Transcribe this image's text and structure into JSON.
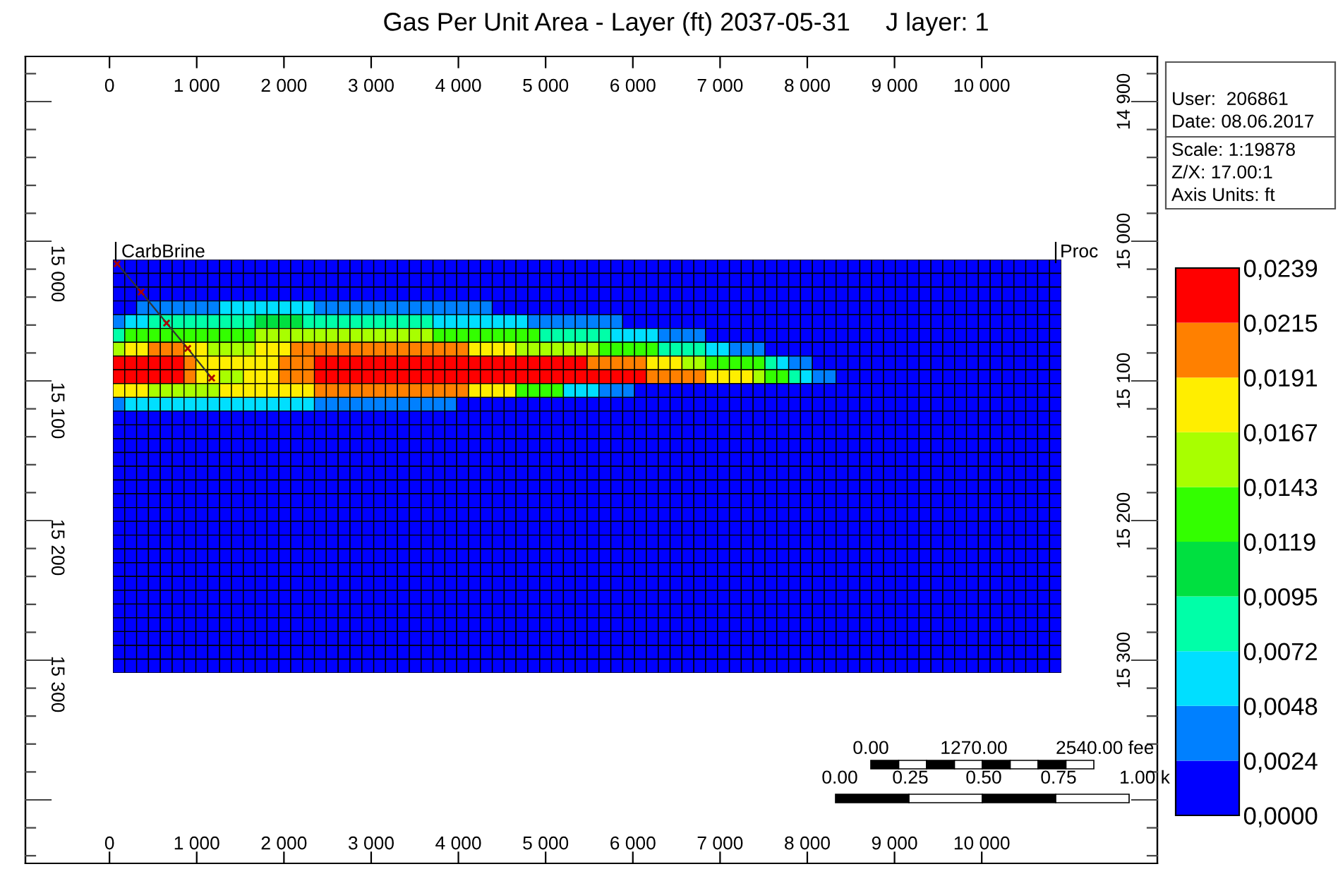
{
  "chart_data": {
    "type": "heatmap",
    "title": "Gas Per Unit Area - Layer (ft) 2037-05-31     J layer: 1",
    "categories": [
      null,
      null,
      null,
      null,
      null,
      null,
      null,
      null,
      null,
      null,
      null,
      null,
      null,
      null,
      null,
      null,
      null,
      null,
      null,
      null,
      null,
      null,
      null,
      null,
      null,
      null,
      null,
      null,
      null,
      null,
      null,
      null,
      null,
      null,
      null,
      null,
      null,
      null,
      null,
      null,
      null,
      null,
      null,
      null,
      null,
      null,
      null,
      null,
      null,
      null,
      null,
      null,
      null,
      null,
      null,
      null,
      null,
      null,
      null,
      null,
      null,
      null,
      null,
      null,
      null,
      null,
      null,
      null,
      null,
      null,
      null,
      null,
      null,
      null,
      null,
      null,
      null,
      null,
      null,
      null
    ],
    "y_categories": [
      null,
      null,
      null,
      null,
      null,
      null,
      null,
      null,
      null,
      null,
      null,
      null,
      null,
      null,
      null,
      null,
      null,
      null,
      null,
      null,
      null,
      null,
      null,
      null,
      null,
      null,
      null,
      null,
      null,
      null
    ],
    "cells": [
      [
        0,
        0,
        0,
        0,
        0,
        0,
        0,
        0,
        0,
        0,
        0,
        0,
        0,
        0,
        0,
        0,
        0,
        0,
        0,
        0,
        0,
        0,
        0,
        0,
        0,
        0,
        0,
        0,
        0,
        0,
        0,
        0,
        0,
        0,
        0,
        0,
        0,
        0,
        0,
        0,
        0,
        0,
        0,
        0,
        0,
        0,
        0,
        0,
        0,
        0,
        0,
        0,
        0,
        0,
        0,
        0,
        0,
        0,
        0,
        0,
        0,
        0,
        0,
        0,
        0,
        0,
        0,
        0,
        0,
        0,
        0,
        0,
        0,
        0,
        0,
        0,
        0,
        0,
        0,
        0
      ],
      [
        0,
        0,
        0,
        0,
        0,
        0,
        0,
        0,
        0,
        0,
        0,
        0,
        0,
        0,
        0,
        0,
        0,
        0,
        0,
        0,
        0,
        0,
        0,
        0,
        0,
        0,
        0,
        0,
        0,
        0,
        0,
        0,
        0,
        0,
        0,
        0,
        0,
        0,
        0,
        0,
        0,
        0,
        0,
        0,
        0,
        0,
        0,
        0,
        0,
        0,
        0,
        0,
        0,
        0,
        0,
        0,
        0,
        0,
        0,
        0,
        0,
        0,
        0,
        0,
        0,
        0,
        0,
        0,
        0,
        0,
        0,
        0,
        0,
        0,
        0,
        0,
        0,
        0,
        0,
        0
      ],
      [
        0,
        0,
        0,
        0,
        0,
        0,
        0,
        0,
        0,
        0,
        0,
        0,
        0,
        0,
        0,
        0,
        0,
        0,
        0,
        0,
        0,
        0,
        0,
        0,
        0,
        0,
        0,
        0,
        0,
        0,
        0,
        0,
        0,
        0,
        0,
        0,
        0,
        0,
        0,
        0,
        0,
        0,
        0,
        0,
        0,
        0,
        0,
        0,
        0,
        0,
        0,
        0,
        0,
        0,
        0,
        0,
        0,
        0,
        0,
        0,
        0,
        0,
        0,
        0,
        0,
        0,
        0,
        0,
        0,
        0,
        0,
        0,
        0,
        0,
        0,
        0,
        0,
        0,
        0,
        0
      ],
      [
        0,
        0,
        0.0036,
        0.0036,
        0.0036,
        0.0036,
        0.0036,
        0.0036,
        0.0036,
        0.006,
        0.006,
        0.006,
        0.006,
        0.006,
        0.006,
        0.006,
        0.006,
        0.0036,
        0.0036,
        0.0036,
        0.0036,
        0.0036,
        0.0036,
        0.0036,
        0.0036,
        0.0036,
        0.0036,
        0.0036,
        0.0036,
        0.0036,
        0.0036,
        0.0036,
        0,
        0,
        0,
        0,
        0,
        0,
        0,
        0,
        0,
        0,
        0,
        0,
        0,
        0,
        0,
        0,
        0,
        0,
        0,
        0,
        0,
        0,
        0,
        0,
        0,
        0,
        0,
        0,
        0,
        0,
        0,
        0,
        0,
        0,
        0,
        0,
        0,
        0,
        0,
        0,
        0,
        0,
        0,
        0,
        0,
        0,
        0,
        0
      ],
      [
        0.0036,
        0.006,
        0.006,
        0.0084,
        0.0084,
        0.0084,
        0.0084,
        0.0084,
        0.0084,
        0.0084,
        0.0084,
        0.0084,
        0.0107,
        0.0107,
        0.0107,
        0.0107,
        0.0084,
        0.0084,
        0.0084,
        0.0084,
        0.0084,
        0.0084,
        0.0084,
        0.0084,
        0.0084,
        0.0084,
        0.0084,
        0.006,
        0.006,
        0.006,
        0.006,
        0.006,
        0.006,
        0.006,
        0.006,
        0.0036,
        0.0036,
        0.0036,
        0.0036,
        0.0036,
        0.0036,
        0.0036,
        0.0036,
        0,
        0,
        0,
        0,
        0,
        0,
        0,
        0,
        0,
        0,
        0,
        0,
        0,
        0,
        0,
        0,
        0,
        0,
        0,
        0,
        0,
        0,
        0,
        0,
        0,
        0,
        0,
        0,
        0,
        0,
        0,
        0,
        0,
        0,
        0,
        0,
        0
      ],
      [
        0.0084,
        0.0131,
        0.0131,
        0.0131,
        0.0131,
        0.0131,
        0.0131,
        0.0131,
        0.0131,
        0.0131,
        0.0131,
        0.0131,
        0.0155,
        0.0155,
        0.0155,
        0.0155,
        0.0155,
        0.0155,
        0.0155,
        0.0155,
        0.0155,
        0.0155,
        0.0155,
        0.0155,
        0.0155,
        0.0155,
        0.0155,
        0.0131,
        0.0131,
        0.0131,
        0.0131,
        0.0131,
        0.0131,
        0.0131,
        0.0131,
        0.0131,
        0.0084,
        0.0084,
        0.0084,
        0.0084,
        0.0084,
        0.0084,
        0.006,
        0.006,
        0.006,
        0.006,
        0.0036,
        0.0036,
        0.0036,
        0.0036,
        0,
        0,
        0,
        0,
        0,
        0,
        0,
        0,
        0,
        0,
        0,
        0,
        0,
        0,
        0,
        0,
        0,
        0,
        0,
        0,
        0,
        0,
        0,
        0,
        0,
        0,
        0,
        0,
        0,
        0
      ],
      [
        0.0155,
        0.0179,
        0.0179,
        0.0203,
        0.0203,
        0.0203,
        0.0179,
        0.0179,
        0.0155,
        0.0155,
        0.0155,
        0.0155,
        0.0179,
        0.0179,
        0.0179,
        0.0203,
        0.0203,
        0.0203,
        0.0203,
        0.0203,
        0.0203,
        0.0203,
        0.0203,
        0.0203,
        0.0203,
        0.0203,
        0.0203,
        0.0203,
        0.0203,
        0.0203,
        0.0179,
        0.0179,
        0.0179,
        0.0179,
        0.0155,
        0.0155,
        0.0155,
        0.0155,
        0.0155,
        0.0155,
        0.0155,
        0.0131,
        0.0131,
        0.0131,
        0.0131,
        0.0131,
        0.0084,
        0.0084,
        0.0084,
        0.0084,
        0.006,
        0.006,
        0.0036,
        0.0036,
        0.0036,
        0,
        0,
        0,
        0,
        0,
        0,
        0,
        0,
        0,
        0,
        0,
        0,
        0,
        0,
        0,
        0,
        0,
        0,
        0,
        0,
        0,
        0,
        0,
        0,
        0
      ],
      [
        0.0227,
        0.0227,
        0.0227,
        0.0227,
        0.0227,
        0.0227,
        0.0203,
        0.0179,
        0.0179,
        0.0179,
        0.0179,
        0.0179,
        0.0179,
        0.0179,
        0.0203,
        0.0203,
        0.0203,
        0.0227,
        0.0227,
        0.0227,
        0.0227,
        0.0227,
        0.0227,
        0.0227,
        0.0227,
        0.0227,
        0.0227,
        0.0227,
        0.0227,
        0.0227,
        0.0227,
        0.0227,
        0.0227,
        0.0227,
        0.0227,
        0.0227,
        0.0227,
        0.0227,
        0.0227,
        0.0227,
        0.0203,
        0.0203,
        0.0203,
        0.0203,
        0.0203,
        0.0179,
        0.0179,
        0.0179,
        0.0155,
        0.0155,
        0.0131,
        0.0131,
        0.0131,
        0.0131,
        0.0131,
        0.0084,
        0.006,
        0.0036,
        0.0036,
        0,
        0,
        0,
        0,
        0,
        0,
        0,
        0,
        0,
        0,
        0,
        0,
        0,
        0,
        0,
        0,
        0,
        0,
        0,
        0,
        0
      ],
      [
        0.0227,
        0.0227,
        0.0227,
        0.0227,
        0.0227,
        0.0227,
        0.0203,
        0.0179,
        0.0179,
        0.0155,
        0.0155,
        0.0179,
        0.0179,
        0.0179,
        0.0203,
        0.0203,
        0.0203,
        0.0227,
        0.0227,
        0.0227,
        0.0227,
        0.0227,
        0.0227,
        0.0227,
        0.0227,
        0.0227,
        0.0227,
        0.0227,
        0.0227,
        0.0227,
        0.0227,
        0.0227,
        0.0227,
        0.0227,
        0.0227,
        0.0227,
        0.0227,
        0.0227,
        0.0227,
        0.0227,
        0.0227,
        0.0227,
        0.0227,
        0.0227,
        0.0227,
        0.0203,
        0.0203,
        0.0203,
        0.0203,
        0.0203,
        0.0179,
        0.0179,
        0.0179,
        0.0179,
        0.0155,
        0.0131,
        0.0131,
        0.0084,
        0.006,
        0.0036,
        0.0036,
        0,
        0,
        0,
        0,
        0,
        0,
        0,
        0,
        0,
        0,
        0,
        0,
        0,
        0,
        0,
        0,
        0,
        0,
        0
      ],
      [
        0.0179,
        0.0179,
        0.0179,
        0.0155,
        0.0155,
        0.0155,
        0.0155,
        0.0155,
        0.0155,
        0.0179,
        0.0179,
        0.0179,
        0.0179,
        0.0179,
        0.0179,
        0.0179,
        0.0179,
        0.0203,
        0.0203,
        0.0203,
        0.0203,
        0.0203,
        0.0203,
        0.0203,
        0.0203,
        0.0203,
        0.0203,
        0.0203,
        0.0203,
        0.0203,
        0.0179,
        0.0179,
        0.0179,
        0.0179,
        0.0131,
        0.0131,
        0.0131,
        0.0131,
        0.006,
        0.006,
        0.006,
        0.0036,
        0.0036,
        0.0036,
        0,
        0,
        0,
        0,
        0,
        0,
        0,
        0,
        0,
        0,
        0,
        0,
        0,
        0,
        0,
        0,
        0,
        0,
        0,
        0,
        0,
        0,
        0,
        0,
        0,
        0,
        0,
        0,
        0,
        0,
        0,
        0,
        0,
        0,
        0,
        0
      ],
      [
        0.0036,
        0.006,
        0.006,
        0.006,
        0.006,
        0.006,
        0.006,
        0.006,
        0.006,
        0.006,
        0.006,
        0.006,
        0.006,
        0.006,
        0.006,
        0.006,
        0.006,
        0.0036,
        0.0036,
        0.0036,
        0.0036,
        0.0036,
        0.0036,
        0.0036,
        0.0036,
        0.0036,
        0.0036,
        0.0036,
        0.0036,
        0,
        0,
        0,
        0,
        0,
        0,
        0,
        0,
        0,
        0,
        0,
        0,
        0,
        0,
        0,
        0,
        0,
        0,
        0,
        0,
        0,
        0,
        0,
        0,
        0,
        0,
        0,
        0,
        0,
        0,
        0,
        0,
        0,
        0,
        0,
        0,
        0,
        0,
        0,
        0,
        0,
        0,
        0,
        0,
        0,
        0,
        0,
        0,
        0,
        0,
        0
      ],
      [
        0,
        0,
        0,
        0,
        0,
        0,
        0,
        0,
        0,
        0,
        0,
        0,
        0,
        0,
        0,
        0,
        0,
        0,
        0,
        0,
        0,
        0,
        0,
        0,
        0,
        0,
        0,
        0,
        0,
        0,
        0,
        0,
        0,
        0,
        0,
        0,
        0,
        0,
        0,
        0,
        0,
        0,
        0,
        0,
        0,
        0,
        0,
        0,
        0,
        0,
        0,
        0,
        0,
        0,
        0,
        0,
        0,
        0,
        0,
        0,
        0,
        0,
        0,
        0,
        0,
        0,
        0,
        0,
        0,
        0,
        0,
        0,
        0,
        0,
        0,
        0,
        0,
        0,
        0,
        0
      ],
      [
        0,
        0,
        0,
        0,
        0,
        0,
        0,
        0,
        0,
        0,
        0,
        0,
        0,
        0,
        0,
        0,
        0,
        0,
        0,
        0,
        0,
        0,
        0,
        0,
        0,
        0,
        0,
        0,
        0,
        0,
        0,
        0,
        0,
        0,
        0,
        0,
        0,
        0,
        0,
        0,
        0,
        0,
        0,
        0,
        0,
        0,
        0,
        0,
        0,
        0,
        0,
        0,
        0,
        0,
        0,
        0,
        0,
        0,
        0,
        0,
        0,
        0,
        0,
        0,
        0,
        0,
        0,
        0,
        0,
        0,
        0,
        0,
        0,
        0,
        0,
        0,
        0,
        0,
        0,
        0
      ],
      [
        0,
        0,
        0,
        0,
        0,
        0,
        0,
        0,
        0,
        0,
        0,
        0,
        0,
        0,
        0,
        0,
        0,
        0,
        0,
        0,
        0,
        0,
        0,
        0,
        0,
        0,
        0,
        0,
        0,
        0,
        0,
        0,
        0,
        0,
        0,
        0,
        0,
        0,
        0,
        0,
        0,
        0,
        0,
        0,
        0,
        0,
        0,
        0,
        0,
        0,
        0,
        0,
        0,
        0,
        0,
        0,
        0,
        0,
        0,
        0,
        0,
        0,
        0,
        0,
        0,
        0,
        0,
        0,
        0,
        0,
        0,
        0,
        0,
        0,
        0,
        0,
        0,
        0,
        0,
        0
      ],
      [
        0,
        0,
        0,
        0,
        0,
        0,
        0,
        0,
        0,
        0,
        0,
        0,
        0,
        0,
        0,
        0,
        0,
        0,
        0,
        0,
        0,
        0,
        0,
        0,
        0,
        0,
        0,
        0,
        0,
        0,
        0,
        0,
        0,
        0,
        0,
        0,
        0,
        0,
        0,
        0,
        0,
        0,
        0,
        0,
        0,
        0,
        0,
        0,
        0,
        0,
        0,
        0,
        0,
        0,
        0,
        0,
        0,
        0,
        0,
        0,
        0,
        0,
        0,
        0,
        0,
        0,
        0,
        0,
        0,
        0,
        0,
        0,
        0,
        0,
        0,
        0,
        0,
        0,
        0,
        0
      ],
      [
        0,
        0,
        0,
        0,
        0,
        0,
        0,
        0,
        0,
        0,
        0,
        0,
        0,
        0,
        0,
        0,
        0,
        0,
        0,
        0,
        0,
        0,
        0,
        0,
        0,
        0,
        0,
        0,
        0,
        0,
        0,
        0,
        0,
        0,
        0,
        0,
        0,
        0,
        0,
        0,
        0,
        0,
        0,
        0,
        0,
        0,
        0,
        0,
        0,
        0,
        0,
        0,
        0,
        0,
        0,
        0,
        0,
        0,
        0,
        0,
        0,
        0,
        0,
        0,
        0,
        0,
        0,
        0,
        0,
        0,
        0,
        0,
        0,
        0,
        0,
        0,
        0,
        0,
        0,
        0
      ],
      [
        0,
        0,
        0,
        0,
        0,
        0,
        0,
        0,
        0,
        0,
        0,
        0,
        0,
        0,
        0,
        0,
        0,
        0,
        0,
        0,
        0,
        0,
        0,
        0,
        0,
        0,
        0,
        0,
        0,
        0,
        0,
        0,
        0,
        0,
        0,
        0,
        0,
        0,
        0,
        0,
        0,
        0,
        0,
        0,
        0,
        0,
        0,
        0,
        0,
        0,
        0,
        0,
        0,
        0,
        0,
        0,
        0,
        0,
        0,
        0,
        0,
        0,
        0,
        0,
        0,
        0,
        0,
        0,
        0,
        0,
        0,
        0,
        0,
        0,
        0,
        0,
        0,
        0,
        0,
        0
      ],
      [
        0,
        0,
        0,
        0,
        0,
        0,
        0,
        0,
        0,
        0,
        0,
        0,
        0,
        0,
        0,
        0,
        0,
        0,
        0,
        0,
        0,
        0,
        0,
        0,
        0,
        0,
        0,
        0,
        0,
        0,
        0,
        0,
        0,
        0,
        0,
        0,
        0,
        0,
        0,
        0,
        0,
        0,
        0,
        0,
        0,
        0,
        0,
        0,
        0,
        0,
        0,
        0,
        0,
        0,
        0,
        0,
        0,
        0,
        0,
        0,
        0,
        0,
        0,
        0,
        0,
        0,
        0,
        0,
        0,
        0,
        0,
        0,
        0,
        0,
        0,
        0,
        0,
        0,
        0,
        0
      ],
      [
        0,
        0,
        0,
        0,
        0,
        0,
        0,
        0,
        0,
        0,
        0,
        0,
        0,
        0,
        0,
        0,
        0,
        0,
        0,
        0,
        0,
        0,
        0,
        0,
        0,
        0,
        0,
        0,
        0,
        0,
        0,
        0,
        0,
        0,
        0,
        0,
        0,
        0,
        0,
        0,
        0,
        0,
        0,
        0,
        0,
        0,
        0,
        0,
        0,
        0,
        0,
        0,
        0,
        0,
        0,
        0,
        0,
        0,
        0,
        0,
        0,
        0,
        0,
        0,
        0,
        0,
        0,
        0,
        0,
        0,
        0,
        0,
        0,
        0,
        0,
        0,
        0,
        0,
        0,
        0
      ],
      [
        0,
        0,
        0,
        0,
        0,
        0,
        0,
        0,
        0,
        0,
        0,
        0,
        0,
        0,
        0,
        0,
        0,
        0,
        0,
        0,
        0,
        0,
        0,
        0,
        0,
        0,
        0,
        0,
        0,
        0,
        0,
        0,
        0,
        0,
        0,
        0,
        0,
        0,
        0,
        0,
        0,
        0,
        0,
        0,
        0,
        0,
        0,
        0,
        0,
        0,
        0,
        0,
        0,
        0,
        0,
        0,
        0,
        0,
        0,
        0,
        0,
        0,
        0,
        0,
        0,
        0,
        0,
        0,
        0,
        0,
        0,
        0,
        0,
        0,
        0,
        0,
        0,
        0,
        0,
        0
      ],
      [
        0,
        0,
        0,
        0,
        0,
        0,
        0,
        0,
        0,
        0,
        0,
        0,
        0,
        0,
        0,
        0,
        0,
        0,
        0,
        0,
        0,
        0,
        0,
        0,
        0,
        0,
        0,
        0,
        0,
        0,
        0,
        0,
        0,
        0,
        0,
        0,
        0,
        0,
        0,
        0,
        0,
        0,
        0,
        0,
        0,
        0,
        0,
        0,
        0,
        0,
        0,
        0,
        0,
        0,
        0,
        0,
        0,
        0,
        0,
        0,
        0,
        0,
        0,
        0,
        0,
        0,
        0,
        0,
        0,
        0,
        0,
        0,
        0,
        0,
        0,
        0,
        0,
        0,
        0,
        0
      ],
      [
        0,
        0,
        0,
        0,
        0,
        0,
        0,
        0,
        0,
        0,
        0,
        0,
        0,
        0,
        0,
        0,
        0,
        0,
        0,
        0,
        0,
        0,
        0,
        0,
        0,
        0,
        0,
        0,
        0,
        0,
        0,
        0,
        0,
        0,
        0,
        0,
        0,
        0,
        0,
        0,
        0,
        0,
        0,
        0,
        0,
        0,
        0,
        0,
        0,
        0,
        0,
        0,
        0,
        0,
        0,
        0,
        0,
        0,
        0,
        0,
        0,
        0,
        0,
        0,
        0,
        0,
        0,
        0,
        0,
        0,
        0,
        0,
        0,
        0,
        0,
        0,
        0,
        0,
        0,
        0
      ],
      [
        0,
        0,
        0,
        0,
        0,
        0,
        0,
        0,
        0,
        0,
        0,
        0,
        0,
        0,
        0,
        0,
        0,
        0,
        0,
        0,
        0,
        0,
        0,
        0,
        0,
        0,
        0,
        0,
        0,
        0,
        0,
        0,
        0,
        0,
        0,
        0,
        0,
        0,
        0,
        0,
        0,
        0,
        0,
        0,
        0,
        0,
        0,
        0,
        0,
        0,
        0,
        0,
        0,
        0,
        0,
        0,
        0,
        0,
        0,
        0,
        0,
        0,
        0,
        0,
        0,
        0,
        0,
        0,
        0,
        0,
        0,
        0,
        0,
        0,
        0,
        0,
        0,
        0,
        0,
        0
      ],
      [
        0,
        0,
        0,
        0,
        0,
        0,
        0,
        0,
        0,
        0,
        0,
        0,
        0,
        0,
        0,
        0,
        0,
        0,
        0,
        0,
        0,
        0,
        0,
        0,
        0,
        0,
        0,
        0,
        0,
        0,
        0,
        0,
        0,
        0,
        0,
        0,
        0,
        0,
        0,
        0,
        0,
        0,
        0,
        0,
        0,
        0,
        0,
        0,
        0,
        0,
        0,
        0,
        0,
        0,
        0,
        0,
        0,
        0,
        0,
        0,
        0,
        0,
        0,
        0,
        0,
        0,
        0,
        0,
        0,
        0,
        0,
        0,
        0,
        0,
        0,
        0,
        0,
        0,
        0,
        0
      ],
      [
        0,
        0,
        0,
        0,
        0,
        0,
        0,
        0,
        0,
        0,
        0,
        0,
        0,
        0,
        0,
        0,
        0,
        0,
        0,
        0,
        0,
        0,
        0,
        0,
        0,
        0,
        0,
        0,
        0,
        0,
        0,
        0,
        0,
        0,
        0,
        0,
        0,
        0,
        0,
        0,
        0,
        0,
        0,
        0,
        0,
        0,
        0,
        0,
        0,
        0,
        0,
        0,
        0,
        0,
        0,
        0,
        0,
        0,
        0,
        0,
        0,
        0,
        0,
        0,
        0,
        0,
        0,
        0,
        0,
        0,
        0,
        0,
        0,
        0,
        0,
        0,
        0,
        0,
        0,
        0
      ],
      [
        0,
        0,
        0,
        0,
        0,
        0,
        0,
        0,
        0,
        0,
        0,
        0,
        0,
        0,
        0,
        0,
        0,
        0,
        0,
        0,
        0,
        0,
        0,
        0,
        0,
        0,
        0,
        0,
        0,
        0,
        0,
        0,
        0,
        0,
        0,
        0,
        0,
        0,
        0,
        0,
        0,
        0,
        0,
        0,
        0,
        0,
        0,
        0,
        0,
        0,
        0,
        0,
        0,
        0,
        0,
        0,
        0,
        0,
        0,
        0,
        0,
        0,
        0,
        0,
        0,
        0,
        0,
        0,
        0,
        0,
        0,
        0,
        0,
        0,
        0,
        0,
        0,
        0,
        0,
        0
      ],
      [
        0,
        0,
        0,
        0,
        0,
        0,
        0,
        0,
        0,
        0,
        0,
        0,
        0,
        0,
        0,
        0,
        0,
        0,
        0,
        0,
        0,
        0,
        0,
        0,
        0,
        0,
        0,
        0,
        0,
        0,
        0,
        0,
        0,
        0,
        0,
        0,
        0,
        0,
        0,
        0,
        0,
        0,
        0,
        0,
        0,
        0,
        0,
        0,
        0,
        0,
        0,
        0,
        0,
        0,
        0,
        0,
        0,
        0,
        0,
        0,
        0,
        0,
        0,
        0,
        0,
        0,
        0,
        0,
        0,
        0,
        0,
        0,
        0,
        0,
        0,
        0,
        0,
        0,
        0,
        0
      ],
      [
        0,
        0,
        0,
        0,
        0,
        0,
        0,
        0,
        0,
        0,
        0,
        0,
        0,
        0,
        0,
        0,
        0,
        0,
        0,
        0,
        0,
        0,
        0,
        0,
        0,
        0,
        0,
        0,
        0,
        0,
        0,
        0,
        0,
        0,
        0,
        0,
        0,
        0,
        0,
        0,
        0,
        0,
        0,
        0,
        0,
        0,
        0,
        0,
        0,
        0,
        0,
        0,
        0,
        0,
        0,
        0,
        0,
        0,
        0,
        0,
        0,
        0,
        0,
        0,
        0,
        0,
        0,
        0,
        0,
        0,
        0,
        0,
        0,
        0,
        0,
        0,
        0,
        0,
        0,
        0
      ],
      [
        0,
        0,
        0,
        0,
        0,
        0,
        0,
        0,
        0,
        0,
        0,
        0,
        0,
        0,
        0,
        0,
        0,
        0,
        0,
        0,
        0,
        0,
        0,
        0,
        0,
        0,
        0,
        0,
        0,
        0,
        0,
        0,
        0,
        0,
        0,
        0,
        0,
        0,
        0,
        0,
        0,
        0,
        0,
        0,
        0,
        0,
        0,
        0,
        0,
        0,
        0,
        0,
        0,
        0,
        0,
        0,
        0,
        0,
        0,
        0,
        0,
        0,
        0,
        0,
        0,
        0,
        0,
        0,
        0,
        0,
        0,
        0,
        0,
        0,
        0,
        0,
        0,
        0,
        0,
        0
      ],
      [
        0,
        0,
        0,
        0,
        0,
        0,
        0,
        0,
        0,
        0,
        0,
        0,
        0,
        0,
        0,
        0,
        0,
        0,
        0,
        0,
        0,
        0,
        0,
        0,
        0,
        0,
        0,
        0,
        0,
        0,
        0,
        0,
        0,
        0,
        0,
        0,
        0,
        0,
        0,
        0,
        0,
        0,
        0,
        0,
        0,
        0,
        0,
        0,
        0,
        0,
        0,
        0,
        0,
        0,
        0,
        0,
        0,
        0,
        0,
        0,
        0,
        0,
        0,
        0,
        0,
        0,
        0,
        0,
        0,
        0,
        0,
        0,
        0,
        0,
        0,
        0,
        0,
        0,
        0,
        0
      ]
    ],
    "colors": [
      "#0000ff",
      "#0080ff",
      "#00dfff",
      "#00ffa8",
      "#00e040",
      "#33ff00",
      "#a8ff00",
      "#ffee00",
      "#ff8000",
      "#ff0000"
    ],
    "clim": [
      0,
      0.0239
    ],
    "cticks": [
      {
        "value": 0,
        "label": "0,0000"
      },
      {
        "value": 0.0024,
        "label": "0,0024"
      },
      {
        "value": 0.0048,
        "label": "0,0048"
      },
      {
        "value": 0.0072,
        "label": "0,0072"
      },
      {
        "value": 0.0095,
        "label": "0,0095"
      },
      {
        "value": 0.0119,
        "label": "0,0119"
      },
      {
        "value": 0.0143,
        "label": "0,0143"
      },
      {
        "value": 0.0167,
        "label": "0,0167"
      },
      {
        "value": 0.0191,
        "label": "0,0191"
      },
      {
        "value": 0.0215,
        "label": "0,0215"
      },
      {
        "value": 0.0239,
        "label": "0,0239"
      }
    ],
    "x2lim": [
      -964,
      12013
    ],
    "x2ticks": [
      {
        "value": 0,
        "label": "0"
      },
      {
        "value": 1000,
        "label": "1 000"
      },
      {
        "value": 2000,
        "label": "2 000"
      },
      {
        "value": 3000,
        "label": "3 000"
      },
      {
        "value": 4000,
        "label": "4 000"
      },
      {
        "value": 5000,
        "label": "5 000"
      },
      {
        "value": 6000,
        "label": "6 000"
      },
      {
        "value": 7000,
        "label": "7 000"
      },
      {
        "value": 8000,
        "label": "8 000"
      },
      {
        "value": 9000,
        "label": "9 000"
      },
      {
        "value": 10000,
        "label": "10 000"
      }
    ],
    "annotations": [
      "CarbBrine",
      "Proc",
      "User:  206861",
      "Date: 08.06.2017",
      "Scale: 1:19878",
      "Z/X: 17.00:1",
      "Axis Units: ft",
      "0.00",
      "1270.00",
      "2540.00 fee",
      "0.00",
      "0.25",
      "0.50",
      "0.75",
      "1.00 k",
      "14 900",
      "15 000",
      "15 100",
      "15 200",
      "15 300",
      "15 000",
      "15 100",
      "15 200",
      "15 300"
    ]
  }
}
